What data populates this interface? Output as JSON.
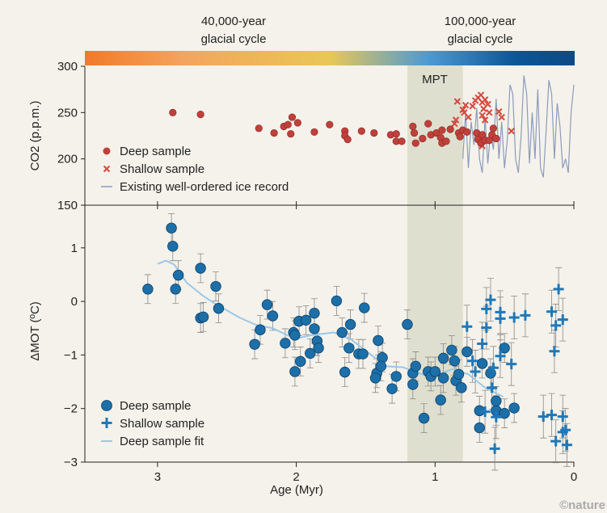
{
  "chart_data": [
    {
      "type": "scatter",
      "panel": "top",
      "ylabel": "CO2 (p.p.m.)",
      "ylim": [
        150,
        300
      ],
      "yticks": [
        150,
        200,
        250,
        300
      ],
      "xlim": [
        3.52,
        0
      ],
      "xticks": [
        3,
        2,
        1,
        0
      ],
      "band": {
        "label": "MPT",
        "from": 1.2,
        "to": 0.8
      },
      "cycle_labels": [
        {
          "line1": "40,000-year",
          "line2": "glacial cycle"
        },
        {
          "line1": "100,000-year",
          "line2": "glacial cycle"
        }
      ],
      "gradient_colors": [
        "#f07a2a",
        "#f4a45c",
        "#e9c757",
        "#4d9ad3",
        "#0a5696",
        "#0b4a86"
      ],
      "legend": [
        "Deep sample",
        "Shallow sample",
        "Existing well-ordered ice record"
      ],
      "legend_position": "bottom-left",
      "colors": {
        "deep": "#c0403a",
        "shallow": "#d6483f",
        "ice": "#8d9bbb"
      },
      "series": [
        {
          "name": "Deep sample",
          "marker": "circle",
          "points": [
            [
              2.89,
              250
            ],
            [
              2.69,
              248
            ],
            [
              2.27,
              233
            ],
            [
              2.16,
              228
            ],
            [
              2.09,
              235
            ],
            [
              2.06,
              237
            ],
            [
              2.04,
              227
            ],
            [
              2.03,
              245
            ],
            [
              1.99,
              239
            ],
            [
              1.87,
              229
            ],
            [
              1.76,
              237
            ],
            [
              1.65,
              230
            ],
            [
              1.65,
              225
            ],
            [
              1.63,
              221
            ],
            [
              1.53,
              230
            ],
            [
              1.44,
              228
            ],
            [
              1.32,
              226
            ],
            [
              1.28,
              227
            ],
            [
              1.28,
              219
            ],
            [
              1.24,
              219
            ],
            [
              1.16,
              235
            ],
            [
              1.15,
              228
            ],
            [
              1.14,
              217
            ],
            [
              1.09,
              222
            ],
            [
              1.05,
              238
            ],
            [
              1.03,
              226
            ],
            [
              0.99,
              228
            ],
            [
              0.96,
              223
            ],
            [
              0.95,
              231
            ],
            [
              0.95,
              217
            ],
            [
              0.92,
              219
            ],
            [
              0.89,
              232
            ],
            [
              0.83,
              228
            ],
            [
              0.82,
              224
            ],
            [
              0.8,
              231
            ],
            [
              0.77,
              229
            ],
            [
              0.7,
              228
            ],
            [
              0.69,
              221
            ],
            [
              0.66,
              226
            ],
            [
              0.67,
              217
            ],
            [
              0.64,
              220
            ],
            [
              0.61,
              220
            ],
            [
              0.59,
              226
            ],
            [
              0.58,
              233
            ],
            [
              0.56,
              222
            ]
          ]
        },
        {
          "name": "Shallow sample",
          "marker": "x",
          "points": [
            [
              0.84,
              262
            ],
            [
              0.86,
              238
            ],
            [
              0.85,
              242
            ],
            [
              0.8,
              253
            ],
            [
              0.78,
              258
            ],
            [
              0.79,
              250
            ],
            [
              0.73,
              257
            ],
            [
              0.71,
              263
            ],
            [
              0.69,
              266
            ],
            [
              0.67,
              269
            ],
            [
              0.66,
              261
            ],
            [
              0.64,
              264
            ],
            [
              0.65,
              254
            ],
            [
              0.62,
              259
            ],
            [
              0.66,
              247
            ],
            [
              0.64,
              242
            ],
            [
              0.61,
              250
            ],
            [
              0.54,
              251
            ],
            [
              0.52,
              245
            ],
            [
              0.45,
              230
            ],
            [
              0.66,
              214
            ],
            [
              0.76,
              245
            ]
          ]
        },
        {
          "name": "Existing well-ordered ice record",
          "marker": "line",
          "points": [
            [
              0.8,
              200
            ],
            [
              0.78,
              250
            ],
            [
              0.76,
              190
            ],
            [
              0.74,
              240
            ],
            [
              0.72,
              215
            ],
            [
              0.7,
              255
            ],
            [
              0.68,
              200
            ],
            [
              0.66,
              185
            ],
            [
              0.64,
              245
            ],
            [
              0.62,
              195
            ],
            [
              0.6,
              230
            ],
            [
              0.58,
              210
            ],
            [
              0.56,
              265
            ],
            [
              0.54,
              200
            ],
            [
              0.52,
              240
            ],
            [
              0.5,
              190
            ],
            [
              0.48,
              220
            ],
            [
              0.46,
              280
            ],
            [
              0.44,
              270
            ],
            [
              0.42,
              200
            ],
            [
              0.4,
              185
            ],
            [
              0.38,
              225
            ],
            [
              0.36,
              290
            ],
            [
              0.34,
              270
            ],
            [
              0.32,
              195
            ],
            [
              0.3,
              250
            ],
            [
              0.28,
              200
            ],
            [
              0.26,
              275
            ],
            [
              0.24,
              190
            ],
            [
              0.22,
              180
            ],
            [
              0.2,
              230
            ],
            [
              0.18,
              285
            ],
            [
              0.16,
              270
            ],
            [
              0.14,
              200
            ],
            [
              0.12,
              260
            ],
            [
              0.1,
              235
            ],
            [
              0.08,
              190
            ],
            [
              0.06,
              200
            ],
            [
              0.04,
              185
            ],
            [
              0.02,
              250
            ],
            [
              0.0,
              280
            ]
          ]
        }
      ]
    },
    {
      "type": "scatter",
      "panel": "bottom",
      "ylabel": "ΔMOT (ºC)",
      "xlabel": "Age (Myr)",
      "ylim": [
        -3,
        1.8
      ],
      "yticks": [
        -3,
        -2,
        -1,
        0,
        1
      ],
      "ytick_labels": [
        "−3",
        "−2",
        "−1",
        "0",
        "1"
      ],
      "xlim": [
        3.52,
        0
      ],
      "xticks": [
        3,
        2,
        1,
        0
      ],
      "legend": [
        "Deep sample",
        "Shallow sample",
        "Deep sample fit"
      ],
      "legend_position": "bottom-left",
      "colors": {
        "deep": "#1d6fa8",
        "shallow": "#1f78b8",
        "fit": "#9cc7e6",
        "errorbar": "#8a8a8a"
      },
      "series": [
        {
          "name": "Deep sample",
          "marker": "circle",
          "error": 0.27,
          "points": [
            [
              3.07,
              0.23
            ],
            [
              2.9,
              1.37
            ],
            [
              2.89,
              1.03
            ],
            [
              2.85,
              0.49
            ],
            [
              2.87,
              0.23
            ],
            [
              2.69,
              0.62
            ],
            [
              2.69,
              -0.31
            ],
            [
              2.67,
              -0.29
            ],
            [
              2.58,
              0.28
            ],
            [
              2.56,
              -0.13
            ],
            [
              2.3,
              -0.8
            ],
            [
              2.26,
              -0.53
            ],
            [
              2.21,
              -0.06
            ],
            [
              2.17,
              -0.27
            ],
            [
              2.08,
              -0.78
            ],
            [
              2.02,
              -0.58
            ],
            [
              2.01,
              -0.63
            ],
            [
              2.01,
              -1.31
            ],
            [
              1.98,
              -0.37
            ],
            [
              1.97,
              -1.12
            ],
            [
              1.93,
              -0.35
            ],
            [
              1.9,
              -0.97
            ],
            [
              1.87,
              -0.22
            ],
            [
              1.87,
              -0.51
            ],
            [
              1.85,
              -0.74
            ],
            [
              1.84,
              -0.87
            ],
            [
              1.71,
              0.01
            ],
            [
              1.67,
              -0.58
            ],
            [
              1.65,
              -1.32
            ],
            [
              1.62,
              -0.87
            ],
            [
              1.61,
              -0.43
            ],
            [
              1.51,
              -0.12
            ],
            [
              1.55,
              -0.98
            ],
            [
              1.52,
              -0.98
            ],
            [
              1.41,
              -0.73
            ],
            [
              1.38,
              -1.05
            ],
            [
              1.42,
              -1.34
            ],
            [
              1.43,
              -1.43
            ],
            [
              1.39,
              -1.21
            ],
            [
              1.31,
              -1.63
            ],
            [
              1.28,
              -1.4
            ],
            [
              1.2,
              -0.43
            ],
            [
              1.16,
              -1.55
            ],
            [
              1.16,
              -1.34
            ],
            [
              1.14,
              -1.21
            ],
            [
              1.08,
              -2.18
            ],
            [
              1.05,
              -1.31
            ],
            [
              1.03,
              -1.4
            ],
            [
              1.0,
              -1.31
            ],
            [
              0.96,
              -1.84
            ],
            [
              0.94,
              -1.06
            ],
            [
              0.94,
              -1.43
            ],
            [
              0.88,
              -0.91
            ],
            [
              0.86,
              -1.11
            ],
            [
              0.85,
              -1.48
            ],
            [
              0.81,
              -1.61
            ],
            [
              0.77,
              -0.94
            ],
            [
              0.83,
              -1.36
            ],
            [
              0.68,
              -2.04
            ],
            [
              0.68,
              -2.36
            ],
            [
              0.66,
              -1.16
            ],
            [
              0.6,
              -1.34
            ],
            [
              0.56,
              -2.04
            ],
            [
              0.56,
              -1.86
            ],
            [
              0.5,
              -0.87
            ],
            [
              0.5,
              -2.09
            ],
            [
              0.43,
              -1.99
            ]
          ]
        },
        {
          "name": "Shallow sample",
          "marker": "plus",
          "error": 0.4,
          "points": [
            [
              0.77,
              -0.47
            ],
            [
              0.66,
              -0.79
            ],
            [
              0.63,
              -0.49
            ],
            [
              0.63,
              -0.14
            ],
            [
              0.6,
              0.03
            ],
            [
              0.53,
              -0.2
            ],
            [
              0.53,
              -0.32
            ],
            [
              0.43,
              -0.3
            ],
            [
              0.35,
              -0.26
            ],
            [
              0.45,
              -1.17
            ],
            [
              0.53,
              -1.02
            ],
            [
              0.58,
              -1.24
            ],
            [
              0.59,
              -1.61
            ],
            [
              0.57,
              -2.75
            ],
            [
              0.64,
              -2.06
            ],
            [
              0.73,
              -1.11
            ],
            [
              0.71,
              -1.31
            ],
            [
              0.56,
              -2.16
            ],
            [
              0.11,
              0.23
            ],
            [
              0.16,
              -0.19
            ],
            [
              0.08,
              -0.34
            ],
            [
              0.13,
              -0.45
            ],
            [
              0.14,
              -0.93
            ],
            [
              0.22,
              -2.15
            ],
            [
              0.16,
              -2.12
            ],
            [
              0.08,
              -2.15
            ],
            [
              0.06,
              -2.4
            ],
            [
              0.08,
              -2.44
            ],
            [
              0.13,
              -2.61
            ],
            [
              0.05,
              -2.68
            ]
          ]
        },
        {
          "name": "Deep sample fit",
          "marker": "line",
          "points": [
            [
              3.0,
              0.7
            ],
            [
              2.94,
              0.76
            ],
            [
              2.88,
              0.69
            ],
            [
              2.79,
              0.35
            ],
            [
              2.67,
              0.1
            ],
            [
              2.58,
              -0.05
            ],
            [
              2.41,
              -0.3
            ],
            [
              2.29,
              -0.44
            ],
            [
              2.17,
              -0.5
            ],
            [
              2.01,
              -0.7
            ],
            [
              1.89,
              -0.63
            ],
            [
              1.73,
              -0.58
            ],
            [
              1.61,
              -0.7
            ],
            [
              1.46,
              -1.0
            ],
            [
              1.35,
              -1.21
            ],
            [
              1.23,
              -1.23
            ],
            [
              1.04,
              -1.41
            ],
            [
              0.87,
              -1.26
            ],
            [
              0.76,
              -1.36
            ],
            [
              0.64,
              -1.61
            ],
            [
              0.51,
              -1.78
            ]
          ]
        }
      ]
    }
  ],
  "credit": "©nature"
}
